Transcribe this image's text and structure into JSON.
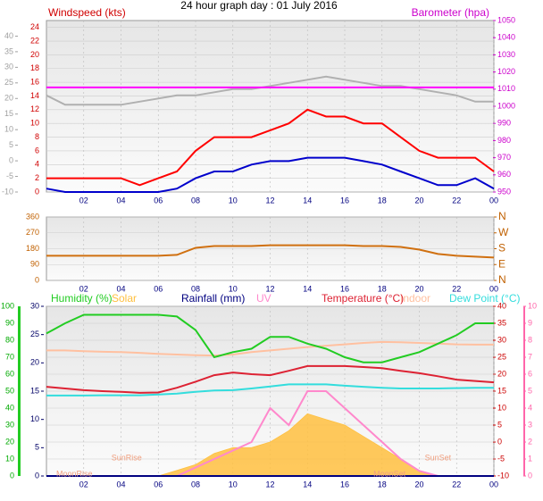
{
  "chart_data": [
    {
      "type": "line",
      "title": "24 hour graph day : 01 July 2016",
      "ylabel": "Windspeed (kts)",
      "y2label": "Barometer (hpa)",
      "x": [
        0,
        1,
        2,
        3,
        4,
        5,
        6,
        7,
        8,
        9,
        10,
        11,
        12,
        13,
        14,
        15,
        16,
        17,
        18,
        19,
        20,
        21,
        22,
        23,
        24
      ],
      "xlim": [
        0,
        24
      ],
      "xticks": [
        {
          "value": 2,
          "label": "02"
        },
        {
          "value": 4,
          "label": "04"
        },
        {
          "value": 6,
          "label": "06"
        },
        {
          "value": 8,
          "label": "08"
        },
        10,
        12,
        14,
        16,
        18,
        20,
        22,
        {
          "value": 24,
          "label": "00"
        }
      ],
      "ylim": [
        0,
        25
      ],
      "yticks": [
        0,
        2,
        4,
        6,
        8,
        10,
        12,
        14,
        16,
        18,
        20,
        22,
        24
      ],
      "ycolor": "#d00000",
      "y2lim": [
        950,
        1050
      ],
      "y2ticks": [
        950,
        960,
        970,
        980,
        990,
        1000,
        1010,
        1020,
        1030,
        1040,
        1050
      ],
      "y2color": "#cc00cc",
      "y3lim": [
        -10,
        45
      ],
      "y3ticks": [
        -10,
        -5,
        0,
        5,
        10,
        15,
        20,
        25,
        30,
        35,
        40
      ],
      "y3color": "#a0a0a0",
      "grid": true,
      "series": [
        {
          "color": "#b0b0b0",
          "axis": "y3",
          "values": [
            21,
            18,
            18,
            18,
            18,
            19,
            20,
            21,
            21,
            22,
            23,
            23,
            24,
            25,
            26,
            27,
            26,
            25,
            24,
            24,
            23,
            22,
            21,
            19,
            19
          ]
        },
        {
          "color": "#ff00ff",
          "axis": "y2",
          "values": [
            1011,
            1011,
            1011,
            1011,
            1011,
            1011,
            1011,
            1011,
            1011,
            1011,
            1011,
            1011,
            1011,
            1011,
            1011,
            1011,
            1011,
            1011,
            1011,
            1011,
            1011,
            1011,
            1011,
            1011,
            1011
          ]
        },
        {
          "color": "#ff0000",
          "axis": "y",
          "values": [
            2,
            2,
            2,
            2,
            2,
            1,
            2,
            3,
            6,
            8,
            8,
            8,
            9,
            10,
            12,
            11,
            11,
            10,
            10,
            8,
            6,
            5,
            5,
            5,
            3
          ]
        },
        {
          "color": "#0000cc",
          "axis": "y",
          "values": [
            0.5,
            0,
            0,
            0,
            0,
            0,
            0,
            0.5,
            2,
            3,
            3,
            4,
            4.5,
            4.5,
            5,
            5,
            5,
            4.5,
            4,
            3,
            2,
            1,
            1,
            2,
            0.5
          ]
        }
      ]
    },
    {
      "type": "line",
      "x": [
        0,
        1,
        2,
        3,
        4,
        5,
        6,
        7,
        8,
        9,
        10,
        11,
        12,
        13,
        14,
        15,
        16,
        17,
        18,
        19,
        20,
        21,
        22,
        23,
        24
      ],
      "xlim": [
        0,
        24
      ],
      "xticks": [
        {
          "value": 2,
          "label": "02"
        },
        {
          "value": 4,
          "label": "04"
        },
        {
          "value": 6,
          "label": "06"
        },
        {
          "value": 8,
          "label": "08"
        },
        10,
        12,
        14,
        16,
        18,
        20,
        22,
        {
          "value": 24,
          "label": "00"
        }
      ],
      "ylim": [
        0,
        360
      ],
      "yticks": [
        0,
        90,
        180,
        270,
        360
      ],
      "ycolor": "#c06000",
      "y2lim": [
        0,
        360
      ],
      "y2ticks": [
        {
          "value": 0,
          "label": "N"
        },
        {
          "value": 90,
          "label": "E"
        },
        {
          "value": 180,
          "label": "S"
        },
        {
          "value": 270,
          "label": "W"
        },
        {
          "value": 360,
          "label": "N"
        }
      ],
      "y2color": "#c06000",
      "grid": true,
      "series": [
        {
          "color": "#d07010",
          "axis": "y",
          "values": [
            140,
            140,
            140,
            140,
            140,
            140,
            140,
            145,
            185,
            195,
            195,
            195,
            200,
            200,
            200,
            200,
            200,
            195,
            195,
            190,
            175,
            150,
            140,
            135,
            130
          ]
        }
      ]
    },
    {
      "type": "line",
      "x": [
        0,
        1,
        2,
        3,
        4,
        5,
        6,
        7,
        8,
        9,
        10,
        11,
        12,
        13,
        14,
        15,
        16,
        17,
        18,
        19,
        20,
        21,
        22,
        23,
        24
      ],
      "xlim": [
        0,
        24
      ],
      "xticks": [
        {
          "value": 2,
          "label": "02"
        },
        {
          "value": 4,
          "label": "04"
        },
        {
          "value": 6,
          "label": "06"
        },
        {
          "value": 8,
          "label": "08"
        },
        10,
        12,
        14,
        16,
        18,
        20,
        22,
        {
          "value": 24,
          "label": "00"
        }
      ],
      "ylim": [
        0,
        100
      ],
      "yticks": [
        0,
        10,
        20,
        30,
        40,
        50,
        60,
        70,
        80,
        90,
        100
      ],
      "ycolor": "#00aa00",
      "y3lim": [
        0,
        30
      ],
      "y3ticks": [
        0,
        5,
        10,
        15,
        20,
        25,
        30
      ],
      "y3color": "#000066",
      "y2lim": [
        -10,
        40
      ],
      "y2ticks": [
        -10,
        -5,
        0,
        5,
        10,
        15,
        20,
        25,
        30,
        35,
        40
      ],
      "y2color": "#cc0000",
      "y4lim": [
        0,
        10
      ],
      "y4ticks": [
        0,
        1,
        2,
        3,
        4,
        5,
        6,
        7,
        8,
        9,
        10
      ],
      "y4color": "#ff66aa",
      "grid": true,
      "series": [
        {
          "name": "Solar",
          "color": "#ffc040",
          "axis": "y3",
          "area": true,
          "values": [
            0,
            0,
            0,
            0,
            0,
            0,
            0,
            1,
            2,
            4,
            5,
            5,
            6,
            8,
            11,
            10,
            9,
            7,
            5,
            3,
            1,
            0,
            0,
            0,
            0
          ]
        },
        {
          "name": "UV",
          "color": "#ff88cc",
          "axis": "y4",
          "values": [
            0,
            0,
            0,
            0,
            0,
            0,
            0,
            0,
            0.5,
            1,
            1.5,
            2,
            4,
            3,
            5,
            5,
            4,
            3,
            2,
            1,
            0.3,
            0,
            0,
            0,
            0
          ]
        },
        {
          "name": "Rainfall (mm)",
          "color": "#000080",
          "axis": "y3",
          "values": [
            0,
            0,
            0,
            0,
            0,
            0,
            0,
            0,
            0,
            0,
            0,
            0,
            0,
            0,
            0,
            0,
            0,
            0,
            0,
            0,
            0,
            0,
            0,
            0,
            0
          ]
        },
        {
          "name": "Indoor",
          "color": "#ffc0a0",
          "axis": "y2",
          "values": [
            27,
            27,
            26.8,
            26.6,
            26.5,
            26.3,
            26,
            25.8,
            25.6,
            25.5,
            25.8,
            26.5,
            27,
            27.5,
            28,
            28.4,
            28.8,
            29.2,
            29.5,
            29.4,
            29.2,
            29,
            28.8,
            28.7,
            28.7
          ]
        },
        {
          "name": "Dew Point (°C)",
          "color": "#33dddd",
          "axis": "y2",
          "values": [
            13.7,
            13.7,
            13.7,
            13.8,
            13.8,
            13.8,
            14,
            14.3,
            14.8,
            15.2,
            15.3,
            15.8,
            16.4,
            17,
            17,
            17,
            16.6,
            16.3,
            16,
            15.8,
            15.8,
            15.8,
            15.9,
            16,
            16
          ]
        },
        {
          "name": "Temperature (°C)",
          "color": "#dd2233",
          "axis": "y2",
          "values": [
            16.3,
            15.8,
            15.3,
            15,
            14.8,
            14.5,
            14.6,
            16,
            17.8,
            19.7,
            20.5,
            20,
            19.7,
            21,
            22.4,
            22.4,
            22.4,
            22.1,
            21.8,
            21,
            20.3,
            19.4,
            18.4,
            18,
            17.6
          ]
        },
        {
          "name": "Humidity (%)",
          "color": "#22cc22",
          "axis": "y",
          "values": [
            84,
            90,
            95,
            95,
            95,
            95,
            95,
            94,
            86,
            70,
            73,
            75,
            82,
            82,
            78,
            75,
            70,
            67,
            67,
            70,
            73,
            78,
            83,
            90,
            90
          ]
        }
      ],
      "annotations": [
        {
          "text": "MoonRise",
          "x": 1.5
        },
        {
          "text": "SunRise",
          "x": 4.3
        },
        {
          "text": "MoonSet",
          "x": 18.4
        },
        {
          "text": "SunSet",
          "x": 21
        }
      ]
    }
  ]
}
